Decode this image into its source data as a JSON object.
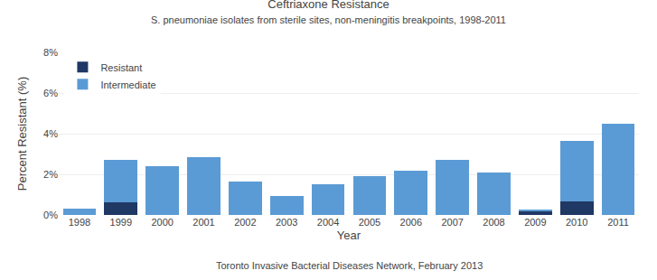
{
  "chart_data": {
    "type": "bar",
    "stacked": true,
    "title": "Ceftriaxone Resistance",
    "subtitle": "S. pneumoniae isolates from sterile sites, non-meningitis breakpoints, 1998-2011",
    "xlabel": "Year",
    "ylabel": "Percent Resistant (%)",
    "annotations": [
      "Toronto Invasive Bacterial Diseases Network, February 2013"
    ],
    "categories": [
      "1998",
      "1999",
      "2000",
      "2001",
      "2002",
      "2003",
      "2004",
      "2005",
      "2006",
      "2007",
      "2008",
      "2009",
      "2010",
      "2011"
    ],
    "series": [
      {
        "name": "Resistant",
        "color": "#1f3864",
        "values": [
          0.0,
          0.62,
          0.0,
          0.0,
          0.0,
          0.0,
          0.0,
          0.0,
          0.0,
          0.0,
          0.0,
          0.18,
          0.65,
          0.0
        ]
      },
      {
        "name": "Intermediate",
        "color": "#5b9bd5",
        "values": [
          0.3,
          2.1,
          2.4,
          2.85,
          1.65,
          0.95,
          1.5,
          1.9,
          2.2,
          2.7,
          2.1,
          0.05,
          3.0,
          4.5
        ]
      }
    ],
    "ylim": [
      0,
      8
    ],
    "yticks": [
      {
        "value": 0,
        "label": "0%"
      },
      {
        "value": 2,
        "label": "2%"
      },
      {
        "value": 4,
        "label": "4%"
      },
      {
        "value": 6,
        "label": "6%"
      },
      {
        "value": 8,
        "label": "8%"
      }
    ],
    "grid": true,
    "legend": "upper left"
  }
}
